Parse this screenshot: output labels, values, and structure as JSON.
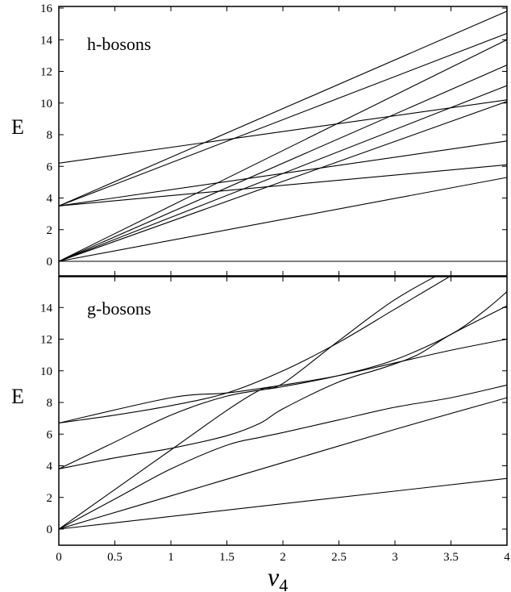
{
  "chart_data": [
    {
      "type": "line",
      "title": "h-bosons",
      "ylabel": "E",
      "xlim": [
        0,
        4
      ],
      "ylim": [
        -1,
        16
      ],
      "xticks": [
        0,
        0.5,
        1,
        1.5,
        2,
        2.5,
        3,
        3.5,
        4
      ],
      "yticks": [
        0,
        2,
        4,
        6,
        8,
        10,
        12,
        14,
        16
      ],
      "x_ticklabels_shown": false,
      "grid": false,
      "series": [
        {
          "x": [
            0,
            4
          ],
          "y": [
            0,
            0
          ]
        },
        {
          "x": [
            0,
            4
          ],
          "y": [
            0,
            5.3
          ]
        },
        {
          "x": [
            0,
            4
          ],
          "y": [
            0,
            10.1
          ]
        },
        {
          "x": [
            0,
            4
          ],
          "y": [
            0,
            11.1
          ]
        },
        {
          "x": [
            0,
            4
          ],
          "y": [
            0,
            12.4
          ]
        },
        {
          "x": [
            0,
            4
          ],
          "y": [
            0,
            14.0
          ]
        },
        {
          "x": [
            0,
            4
          ],
          "y": [
            3.5,
            6.1
          ]
        },
        {
          "x": [
            0,
            4
          ],
          "y": [
            3.5,
            7.6
          ]
        },
        {
          "x": [
            0,
            4
          ],
          "y": [
            3.5,
            14.4
          ]
        },
        {
          "x": [
            0,
            4
          ],
          "y": [
            3.5,
            15.8
          ]
        },
        {
          "x": [
            0,
            4
          ],
          "y": [
            6.2,
            10.2
          ]
        }
      ]
    },
    {
      "type": "line",
      "title": "g-bosons",
      "ylabel": "E",
      "xlabel_main": "v",
      "xlabel_sub": "4",
      "xlim": [
        0,
        4
      ],
      "ylim": [
        -1,
        16
      ],
      "xticks": [
        0,
        0.5,
        1,
        1.5,
        2,
        2.5,
        3,
        3.5,
        4
      ],
      "xticklabels": [
        "0",
        "0.5",
        "1",
        "1.5",
        "2",
        "2.5",
        "3",
        "3.5",
        "4"
      ],
      "yticks": [
        0,
        2,
        4,
        6,
        8,
        10,
        12,
        14
      ],
      "yticklabels": [
        "0",
        "2",
        "4",
        "6",
        "8",
        "10",
        "12",
        "14"
      ],
      "grid": false,
      "series": [
        {
          "x": [
            0,
            4
          ],
          "y": [
            0,
            3.2
          ]
        },
        {
          "x": [
            0,
            1,
            2,
            3,
            4
          ],
          "y": [
            0,
            2.1,
            4.2,
            6.3,
            8.3
          ]
        },
        {
          "x": [
            0,
            0.5,
            1,
            1.5,
            1.8,
            2,
            2.5,
            3,
            3.5,
            4
          ],
          "y": [
            0,
            1.9,
            3.8,
            5.3,
            5.8,
            6.1,
            6.9,
            7.7,
            8.3,
            9.1
          ]
        },
        {
          "x": [
            0,
            0.5,
            1,
            1.5,
            1.8,
            2,
            2.5,
            3,
            3.5,
            4
          ],
          "y": [
            0,
            2.5,
            5.0,
            7.5,
            8.8,
            9.2,
            11.9,
            14.5,
            16.5,
            18.5
          ]
        },
        {
          "x": [
            0,
            0.5,
            1,
            1.5,
            1.8,
            2,
            2.5,
            2.9,
            3.2,
            3.5,
            4
          ],
          "y": [
            3.8,
            4.5,
            5.1,
            5.9,
            6.7,
            7.6,
            9.3,
            10.2,
            11.0,
            12.3,
            14.1
          ]
        },
        {
          "x": [
            0,
            0.5,
            1,
            1.5,
            2,
            2.5,
            3,
            3.5,
            3.8,
            4
          ],
          "y": [
            3.8,
            5.5,
            7.2,
            8.4,
            9.0,
            9.7,
            10.7,
            12.3,
            13.8,
            15.0
          ]
        },
        {
          "x": [
            0,
            0.5,
            1,
            1.5,
            2,
            2.5,
            3,
            3.5,
            4
          ],
          "y": [
            6.7,
            7.2,
            7.8,
            8.6,
            10.0,
            11.8,
            13.9,
            16.0,
            18.0
          ]
        },
        {
          "x": [
            0,
            1,
            1.5,
            2,
            2.5,
            3,
            3.5,
            4
          ],
          "y": [
            6.7,
            8.3,
            8.6,
            9.1,
            9.7,
            10.5,
            11.3,
            12.0
          ]
        }
      ]
    }
  ]
}
